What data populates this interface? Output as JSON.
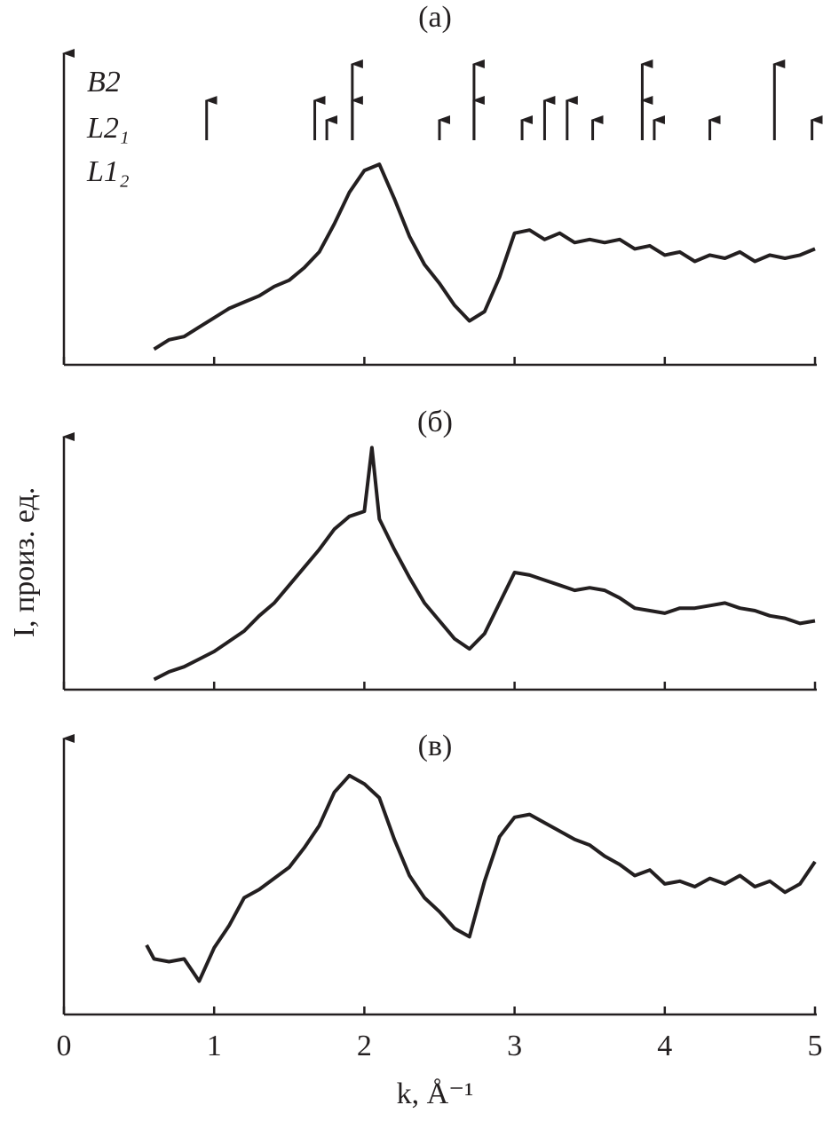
{
  "chart_data": [
    {
      "type": "line",
      "title": "(а)",
      "color": "#231f20",
      "x": [
        0.6,
        0.7,
        0.8,
        0.9,
        1.0,
        1.1,
        1.2,
        1.3,
        1.4,
        1.5,
        1.6,
        1.7,
        1.8,
        1.9,
        2.0,
        2.1,
        2.2,
        2.3,
        2.4,
        2.5,
        2.6,
        2.7,
        2.8,
        2.9,
        3.0,
        3.1,
        3.2,
        3.3,
        3.4,
        3.5,
        3.6,
        3.7,
        3.8,
        3.9,
        4.0,
        4.1,
        4.2,
        4.3,
        4.4,
        4.5,
        4.6,
        4.7,
        4.8,
        4.9,
        5.0
      ],
      "values": [
        5,
        8,
        9,
        12,
        15,
        18,
        20,
        22,
        25,
        27,
        31,
        36,
        45,
        55,
        62,
        64,
        53,
        41,
        32,
        26,
        19,
        14,
        17,
        28,
        42,
        43,
        40,
        42,
        39,
        40,
        39,
        40,
        37,
        38,
        35,
        36,
        33,
        35,
        34,
        36,
        33,
        35,
        34,
        35,
        37
      ],
      "xlim": [
        0,
        5
      ],
      "ylim": [
        0,
        100
      ],
      "xticks": [
        0,
        1,
        2,
        3,
        4,
        5
      ],
      "markers": [
        {
          "name": "B2",
          "positions": [
            1.92,
            2.73,
            3.85,
            4.73
          ]
        },
        {
          "name": "L2₁",
          "positions": [
            0.95,
            1.67,
            1.92,
            2.73,
            3.2,
            3.35,
            3.85
          ]
        },
        {
          "name": "L1₂",
          "positions": [
            1.75,
            2.5,
            3.05,
            3.52,
            3.93,
            4.3,
            4.98
          ]
        }
      ]
    },
    {
      "type": "line",
      "title": "(б)",
      "color": "#231f20",
      "ylabel": "I, произ. ед.",
      "x": [
        0.6,
        0.7,
        0.8,
        0.9,
        1.0,
        1.1,
        1.2,
        1.3,
        1.4,
        1.5,
        1.6,
        1.7,
        1.8,
        1.9,
        2.0,
        2.05,
        2.1,
        2.2,
        2.3,
        2.4,
        2.5,
        2.6,
        2.7,
        2.8,
        2.9,
        3.0,
        3.1,
        3.2,
        3.3,
        3.4,
        3.5,
        3.6,
        3.7,
        3.8,
        3.9,
        4.0,
        4.1,
        4.2,
        4.3,
        4.4,
        4.5,
        4.6,
        4.7,
        4.8,
        4.9,
        5.0
      ],
      "values": [
        4,
        7,
        9,
        12,
        15,
        19,
        23,
        29,
        34,
        41,
        48,
        55,
        63,
        68,
        70,
        95,
        67,
        55,
        44,
        34,
        27,
        20,
        16,
        22,
        34,
        46,
        45,
        43,
        41,
        39,
        40,
        39,
        36,
        32,
        31,
        30,
        32,
        32,
        33,
        34,
        32,
        31,
        29,
        28,
        26,
        27
      ],
      "xlim": [
        0,
        5
      ],
      "ylim": [
        0,
        100
      ],
      "xticks": [
        0,
        1,
        2,
        3,
        4,
        5
      ]
    },
    {
      "type": "line",
      "title": "(в)",
      "color": "#231f20",
      "xlabel": "k, Å⁻¹",
      "x": [
        0.55,
        0.6,
        0.7,
        0.8,
        0.9,
        1.0,
        1.1,
        1.2,
        1.3,
        1.4,
        1.5,
        1.6,
        1.7,
        1.8,
        1.9,
        2.0,
        2.1,
        2.2,
        2.3,
        2.4,
        2.5,
        2.6,
        2.7,
        2.8,
        2.9,
        3.0,
        3.1,
        3.2,
        3.3,
        3.4,
        3.5,
        3.6,
        3.7,
        3.8,
        3.9,
        4.0,
        4.1,
        4.2,
        4.3,
        4.4,
        4.5,
        4.6,
        4.7,
        4.8,
        4.9,
        5.0
      ],
      "values": [
        25,
        20,
        19,
        20,
        12,
        24,
        32,
        42,
        45,
        49,
        53,
        60,
        68,
        80,
        86,
        83,
        78,
        63,
        50,
        42,
        37,
        31,
        28,
        48,
        64,
        71,
        72,
        69,
        66,
        63,
        61,
        57,
        54,
        50,
        52,
        47,
        48,
        46,
        49,
        47,
        50,
        46,
        48,
        44,
        47,
        55
      ],
      "xlim": [
        0,
        5
      ],
      "ylim": [
        0,
        100
      ],
      "xticks": [
        0,
        1,
        2,
        3,
        4,
        5
      ]
    }
  ]
}
